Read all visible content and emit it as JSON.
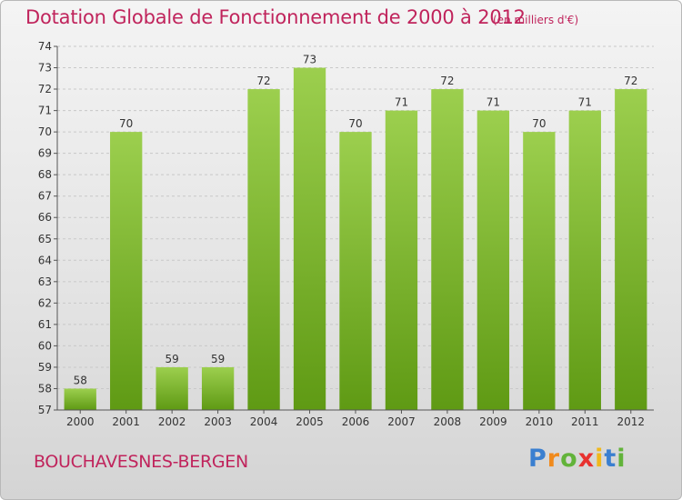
{
  "header": {
    "title": "Dotation Globale de Fonctionnement de 2000 à 2012",
    "subtitle": "(en milliers d'€)"
  },
  "footer": {
    "town": "BOUCHAVESNES-BERGEN",
    "logo_letters": [
      "P",
      "r",
      "o",
      "x",
      "i",
      "t",
      "i"
    ]
  },
  "colors": {
    "accent": "#c0245c",
    "bar_light": "#9ccf4e",
    "bar_dark": "#5f9a14"
  },
  "chart_data": {
    "type": "bar",
    "categories": [
      "2000",
      "2001",
      "2002",
      "2003",
      "2004",
      "2005",
      "2006",
      "2007",
      "2008",
      "2009",
      "2010",
      "2011",
      "2012"
    ],
    "values": [
      58,
      70,
      59,
      59,
      72,
      73,
      70,
      71,
      72,
      71,
      70,
      71,
      72
    ],
    "ylim": [
      57,
      74
    ],
    "yticks": [
      "57",
      "58",
      "59",
      "60",
      "61",
      "62",
      "63",
      "64",
      "65",
      "66",
      "67",
      "68",
      "69",
      "70",
      "71",
      "72",
      "73",
      "74"
    ],
    "grid": true,
    "xlabel": "",
    "ylabel": ""
  }
}
